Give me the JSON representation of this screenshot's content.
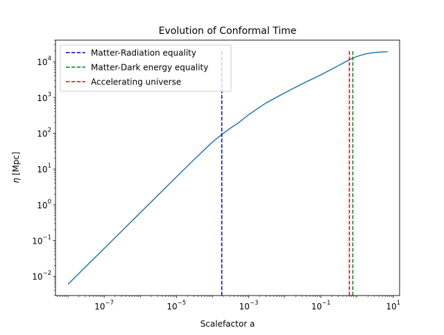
{
  "chart_data": {
    "type": "line",
    "title": "Evolution of Conformal Time",
    "xlabel": "Scalefactor a",
    "ylabel_symbol": "η",
    "ylabel_unit": " [Mpc]",
    "xscale": "log",
    "yscale": "log",
    "xlim": [
      4.5e-09,
      15
    ],
    "ylim": [
      0.0029,
      40000
    ],
    "x_ticks": [
      {
        "value": 1e-07,
        "base": "10",
        "exp": "−7"
      },
      {
        "value": 1e-05,
        "base": "10",
        "exp": "−5"
      },
      {
        "value": 0.001,
        "base": "10",
        "exp": "−3"
      },
      {
        "value": 0.1,
        "base": "10",
        "exp": "−1"
      },
      {
        "value": 10,
        "base": "10",
        "exp": "1"
      }
    ],
    "y_ticks": [
      {
        "value": 0.01,
        "base": "10",
        "exp": "−2"
      },
      {
        "value": 0.1,
        "base": "10",
        "exp": "−1"
      },
      {
        "value": 1,
        "base": "10",
        "exp": "0"
      },
      {
        "value": 10,
        "base": "10",
        "exp": "1"
      },
      {
        "value": 100,
        "base": "10",
        "exp": "2"
      },
      {
        "value": 1000,
        "base": "10",
        "exp": "3"
      },
      {
        "value": 10000,
        "base": "10",
        "exp": "4"
      }
    ],
    "grid": false,
    "legend_position": "top-left",
    "series": [
      {
        "color": "#1f77b4",
        "style": "solid",
        "x": [
          1e-08,
          1e-07,
          1e-06,
          1e-05,
          3e-05,
          0.0001,
          0.0002,
          0.0003,
          0.0005,
          0.001,
          0.003,
          0.01,
          0.03,
          0.1,
          0.3,
          0.5,
          0.7,
          1,
          1.5,
          2,
          3,
          5,
          7
        ],
        "y": [
          0.006,
          0.06,
          0.6,
          6,
          18,
          57,
          100,
          135,
          190,
          330,
          700,
          1350,
          2400,
          4300,
          7700,
          10200,
          12100,
          14000,
          15900,
          17000,
          18000,
          18700,
          19000
        ]
      }
    ],
    "vlines": [
      {
        "name": "Matter-Radiation equality",
        "x": 0.00018,
        "y_top": 20000,
        "color": "#0000bf",
        "style": "dashed"
      },
      {
        "name": "Matter-Dark energy equality",
        "x": 0.76,
        "y_top": 20000,
        "color": "#008000",
        "style": "dashed"
      },
      {
        "name": "Accelerating universe",
        "x": 0.61,
        "y_top": 20000,
        "color": "#e00000",
        "style": "dashed"
      }
    ]
  }
}
